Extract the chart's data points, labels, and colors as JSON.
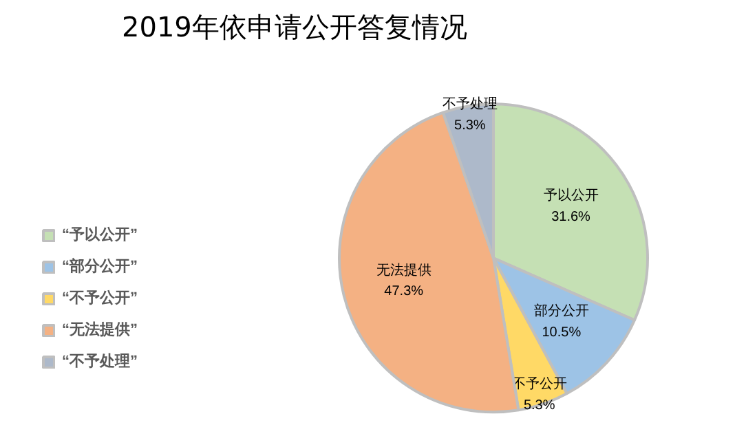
{
  "chart_data": {
    "type": "pie",
    "title": "2019年依申请公开答复情况",
    "categories": [
      "“予以公开”",
      "“部分公开”",
      "“不予公开”",
      "“无法提供”",
      "“不予处理”"
    ],
    "values": [
      31.6,
      10.5,
      5.3,
      47.3,
      5.3
    ],
    "colors": [
      "#c5e0b4",
      "#9dc3e6",
      "#ffd966",
      "#f4b183",
      "#adb9ca"
    ],
    "value_labels": [
      "予以公开\n31.6%",
      "部分公开\n10.5%",
      "不予公开\n5.3%",
      "无法提供\n47.3%",
      "不予处理\n5.3%"
    ],
    "legend": "left"
  }
}
